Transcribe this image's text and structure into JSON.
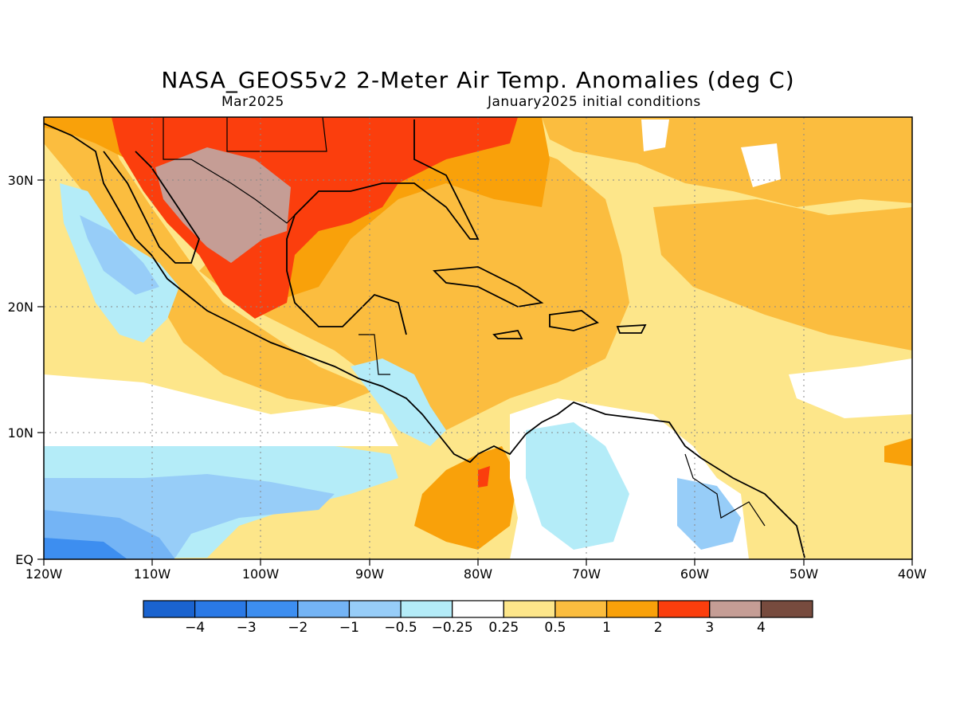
{
  "title": "NASA_GEOS5v2 2-Meter Air Temp. Anomalies (deg C)",
  "subtitle_left": "Mar2025",
  "subtitle_right": "January2025 initial conditions",
  "map": {
    "lon_range": [
      -120,
      -40
    ],
    "lat_range": [
      0,
      35
    ],
    "x_ticks": [
      "120W",
      "110W",
      "100W",
      "90W",
      "80W",
      "70W",
      "60W",
      "50W",
      "40W"
    ],
    "y_ticks": [
      "EQ",
      "10N",
      "20N",
      "30N"
    ],
    "grid": "dotted"
  },
  "colorbar": {
    "colors": [
      "#1a63cf",
      "#2a79e6",
      "#3d8ef0",
      "#74b4f5",
      "#97cdf8",
      "#b4ecf8",
      "#ffffff",
      "#fde68a",
      "#fbbd3f",
      "#f9a10a",
      "#fb3e0d",
      "#c59d95",
      "#774b3e"
    ],
    "labels": [
      "−4",
      "−3",
      "−2",
      "−1",
      "−0.5",
      "−0.25",
      "0.25",
      "0.5",
      "1",
      "2",
      "3",
      "4"
    ]
  }
}
